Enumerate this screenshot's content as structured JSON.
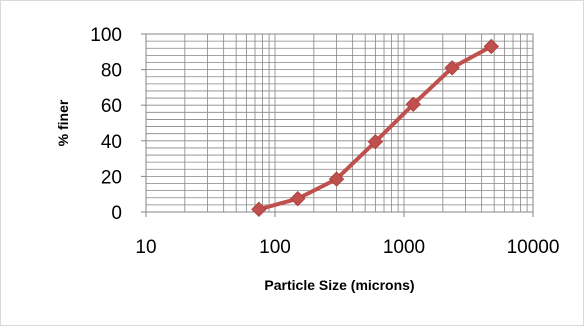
{
  "chart_data": {
    "type": "line",
    "title": "",
    "xlabel": "Particle Size (microns)",
    "ylabel": "% finer",
    "x_scale": "log",
    "xlim": [
      10,
      10000
    ],
    "ylim": [
      0,
      100
    ],
    "x_ticks": [
      10,
      100,
      1000,
      10000
    ],
    "x_tick_labels": [
      "10",
      "100",
      "1000",
      "10000"
    ],
    "y_ticks": [
      0,
      20,
      40,
      60,
      80,
      100
    ],
    "y_tick_labels": [
      "0",
      "20",
      "40",
      "60",
      "80",
      "100"
    ],
    "grid": true,
    "legend": "none",
    "series": [
      {
        "color": "#c0504d",
        "marker": "diamond",
        "x": [
          75,
          150,
          300,
          600,
          1180,
          2360,
          4750
        ],
        "y": [
          1.5,
          7.5,
          18.5,
          39.5,
          60.5,
          81,
          93
        ]
      }
    ]
  }
}
